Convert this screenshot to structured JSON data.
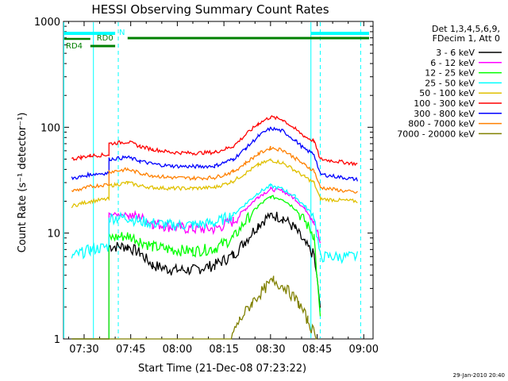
{
  "chart_data": {
    "type": "line",
    "title": "HESSI Observing Summary Count Rates",
    "xlabel": "Start Time (21-Dec-08 07:23:22)",
    "ylabel": "Count Rate (s⁻¹ detector⁻¹)",
    "xlim": [
      "07:23:22",
      "09:03:00"
    ],
    "ylim": [
      1,
      1000
    ],
    "yscale": "log",
    "x_ticks": [
      "07:30",
      "07:45",
      "08:00",
      "08:15",
      "08:30",
      "08:45",
      "09:00"
    ],
    "y_ticks": [
      "1",
      "10",
      "100",
      "1000"
    ],
    "legend_header": [
      "Det 1,3,4,5,6,9,",
      "FDecim 1, Att 0"
    ],
    "legend_placement": "right",
    "timestamp": "29-Jan-2010 20:40",
    "flags": [
      {
        "label": "N",
        "color": "#00ffff"
      },
      {
        "label": "RD0",
        "color": "#008000"
      },
      {
        "label": "RD4",
        "color": "#008000"
      }
    ],
    "series": [
      {
        "name": "3 - 6 keV",
        "color": "#000000",
        "points": [
          [
            "07:26",
            1
          ],
          [
            "07:29",
            1
          ],
          [
            "07:32",
            1
          ],
          [
            "07:38",
            1
          ],
          [
            "07:38",
            7.5
          ],
          [
            "07:44",
            7.5
          ],
          [
            "07:48",
            6.5
          ],
          [
            "07:52",
            5
          ],
          [
            "07:58",
            4.5
          ],
          [
            "08:05",
            4.5
          ],
          [
            "08:12",
            5
          ],
          [
            "08:18",
            6.2
          ],
          [
            "08:22",
            8.5
          ],
          [
            "08:26",
            12
          ],
          [
            "08:30",
            15
          ],
          [
            "08:34",
            14
          ],
          [
            "08:38",
            11
          ],
          [
            "08:41",
            8
          ],
          [
            "08:44",
            6.2
          ],
          [
            "08:46",
            2
          ]
        ]
      },
      {
        "name": "6 - 12 keV",
        "color": "#ff00ff",
        "points": [
          [
            "07:26",
            1
          ],
          [
            "07:29",
            1
          ],
          [
            "07:32",
            1
          ],
          [
            "07:38",
            1
          ],
          [
            "07:38",
            15
          ],
          [
            "07:44",
            15
          ],
          [
            "07:48",
            14
          ],
          [
            "07:52",
            12.5
          ],
          [
            "07:58",
            11.5
          ],
          [
            "08:05",
            11
          ],
          [
            "08:12",
            11
          ],
          [
            "08:18",
            13
          ],
          [
            "08:22",
            17
          ],
          [
            "08:26",
            22
          ],
          [
            "08:30",
            26
          ],
          [
            "08:34",
            25
          ],
          [
            "08:38",
            21
          ],
          [
            "08:41",
            17
          ],
          [
            "08:44",
            13.5
          ],
          [
            "08:46",
            8
          ]
        ]
      },
      {
        "name": "12 - 25 keV",
        "color": "#00ff00",
        "points": [
          [
            "07:26",
            1
          ],
          [
            "07:29",
            1
          ],
          [
            "07:32",
            1
          ],
          [
            "07:38",
            1
          ],
          [
            "07:38",
            9
          ],
          [
            "07:44",
            9.5
          ],
          [
            "07:48",
            8.5
          ],
          [
            "07:52",
            7.5
          ],
          [
            "07:58",
            7
          ],
          [
            "08:05",
            6.8
          ],
          [
            "08:12",
            7.2
          ],
          [
            "08:18",
            9
          ],
          [
            "08:22",
            13
          ],
          [
            "08:26",
            18
          ],
          [
            "08:30",
            22
          ],
          [
            "08:34",
            21
          ],
          [
            "08:38",
            17
          ],
          [
            "08:41",
            13
          ],
          [
            "08:44",
            9.5
          ],
          [
            "08:46",
            1.5
          ]
        ]
      },
      {
        "name": "25 - 50 keV",
        "color": "#00ffff",
        "points": [
          [
            "07:26",
            6
          ],
          [
            "07:29",
            6.5
          ],
          [
            "07:32",
            7
          ],
          [
            "07:38",
            7.5
          ],
          [
            "07:38",
            14
          ],
          [
            "07:44",
            14
          ],
          [
            "07:48",
            13
          ],
          [
            "07:52",
            12.5
          ],
          [
            "07:58",
            12
          ],
          [
            "08:05",
            12
          ],
          [
            "08:12",
            12.5
          ],
          [
            "08:18",
            15
          ],
          [
            "08:22",
            19
          ],
          [
            "08:26",
            24
          ],
          [
            "08:30",
            28
          ],
          [
            "08:34",
            26
          ],
          [
            "08:38",
            22
          ],
          [
            "08:41",
            18
          ],
          [
            "08:44",
            14.5
          ],
          [
            "08:46",
            6
          ],
          [
            "08:58",
            6
          ]
        ]
      },
      {
        "name": "50 - 100 keV",
        "color": "#e0c000",
        "points": [
          [
            "07:26",
            18
          ],
          [
            "07:29",
            19
          ],
          [
            "07:32",
            20
          ],
          [
            "07:38",
            21
          ],
          [
            "07:38",
            28
          ],
          [
            "07:44",
            30
          ],
          [
            "07:48",
            28
          ],
          [
            "07:52",
            27
          ],
          [
            "07:58",
            26.5
          ],
          [
            "08:05",
            26.5
          ],
          [
            "08:12",
            27
          ],
          [
            "08:18",
            31
          ],
          [
            "08:22",
            37
          ],
          [
            "08:26",
            44
          ],
          [
            "08:30",
            49
          ],
          [
            "08:34",
            46
          ],
          [
            "08:38",
            39
          ],
          [
            "08:41",
            34
          ],
          [
            "08:44",
            30
          ],
          [
            "08:46",
            21
          ],
          [
            "08:58",
            20
          ]
        ]
      },
      {
        "name": "100 - 300 keV",
        "color": "#ff0000",
        "points": [
          [
            "07:26",
            50
          ],
          [
            "07:29",
            52
          ],
          [
            "07:32",
            54
          ],
          [
            "07:38",
            55
          ],
          [
            "07:38",
            70
          ],
          [
            "07:44",
            73
          ],
          [
            "07:48",
            66
          ],
          [
            "07:52",
            62
          ],
          [
            "07:58",
            58
          ],
          [
            "08:05",
            57
          ],
          [
            "08:12",
            58
          ],
          [
            "08:18",
            66
          ],
          [
            "08:22",
            85
          ],
          [
            "08:26",
            108
          ],
          [
            "08:30",
            125
          ],
          [
            "08:34",
            118
          ],
          [
            "08:38",
            96
          ],
          [
            "08:41",
            82
          ],
          [
            "08:44",
            74
          ],
          [
            "08:46",
            50
          ],
          [
            "08:58",
            45
          ]
        ]
      },
      {
        "name": "300 - 800 keV",
        "color": "#0000ff",
        "points": [
          [
            "07:26",
            33
          ],
          [
            "07:29",
            34
          ],
          [
            "07:32",
            36
          ],
          [
            "07:38",
            37
          ],
          [
            "07:38",
            50
          ],
          [
            "07:44",
            52
          ],
          [
            "07:48",
            48
          ],
          [
            "07:52",
            45
          ],
          [
            "07:58",
            43
          ],
          [
            "08:05",
            42.5
          ],
          [
            "08:12",
            43
          ],
          [
            "08:18",
            50
          ],
          [
            "08:22",
            63
          ],
          [
            "08:26",
            82
          ],
          [
            "08:30",
            98
          ],
          [
            "08:34",
            92
          ],
          [
            "08:38",
            75
          ],
          [
            "08:41",
            62
          ],
          [
            "08:44",
            56
          ],
          [
            "08:46",
            36
          ],
          [
            "08:58",
            32
          ]
        ]
      },
      {
        "name": "800 - 7000 keV",
        "color": "#ff8000",
        "points": [
          [
            "07:26",
            25
          ],
          [
            "07:29",
            26
          ],
          [
            "07:32",
            27.5
          ],
          [
            "07:38",
            29
          ],
          [
            "07:38",
            38
          ],
          [
            "07:44",
            40
          ],
          [
            "07:48",
            37
          ],
          [
            "07:52",
            35
          ],
          [
            "07:58",
            33.5
          ],
          [
            "08:05",
            33
          ],
          [
            "08:12",
            33.5
          ],
          [
            "08:18",
            38
          ],
          [
            "08:22",
            46
          ],
          [
            "08:26",
            56
          ],
          [
            "08:30",
            64
          ],
          [
            "08:34",
            61
          ],
          [
            "08:38",
            51
          ],
          [
            "08:41",
            44
          ],
          [
            "08:44",
            39
          ],
          [
            "08:46",
            27
          ],
          [
            "08:58",
            24
          ]
        ]
      },
      {
        "name": "7000 - 20000 keV",
        "color": "#808000",
        "points": [
          [
            "07:26",
            1
          ],
          [
            "07:32",
            1
          ],
          [
            "07:44",
            1
          ],
          [
            "08:05",
            1
          ],
          [
            "08:17",
            1
          ],
          [
            "08:20",
            1.5
          ],
          [
            "08:24",
            2.2
          ],
          [
            "08:28",
            3
          ],
          [
            "08:31",
            3.6
          ],
          [
            "08:35",
            3
          ],
          [
            "08:39",
            2.2
          ],
          [
            "08:42",
            1.5
          ],
          [
            "08:45",
            1
          ]
        ]
      }
    ]
  }
}
